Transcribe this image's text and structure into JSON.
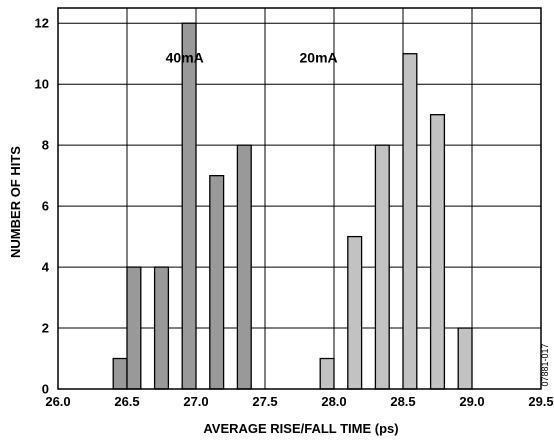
{
  "figure_id": "07881-017",
  "chart_data": {
    "type": "bar",
    "xlabel": "AVERAGE RISE/FALL TIME (ps)",
    "ylabel": "NUMBER OF HITS",
    "xlim": [
      26.0,
      29.5
    ],
    "ylim": [
      0,
      12.5
    ],
    "xticks": [
      "26.0",
      "26.5",
      "27.0",
      "27.5",
      "28.0",
      "28.5",
      "29.0",
      "29.5"
    ],
    "yticks": [
      "0",
      "2",
      "4",
      "6",
      "8",
      "10",
      "12"
    ],
    "grid": true,
    "bin_width": 0.1,
    "series": [
      {
        "name": "40mA",
        "color": "#999999",
        "bins": [
          {
            "x": 26.45,
            "count": 1
          },
          {
            "x": 26.55,
            "count": 4
          },
          {
            "x": 26.75,
            "count": 4
          },
          {
            "x": 26.95,
            "count": 12
          },
          {
            "x": 27.15,
            "count": 7
          },
          {
            "x": 27.35,
            "count": 8
          }
        ]
      },
      {
        "name": "20mA",
        "color": "#c2c2c2",
        "bins": [
          {
            "x": 27.95,
            "count": 1
          },
          {
            "x": 28.15,
            "count": 5
          },
          {
            "x": 28.35,
            "count": 8
          },
          {
            "x": 28.55,
            "count": 11
          },
          {
            "x": 28.75,
            "count": 9
          },
          {
            "x": 28.95,
            "count": 2
          }
        ]
      }
    ]
  }
}
